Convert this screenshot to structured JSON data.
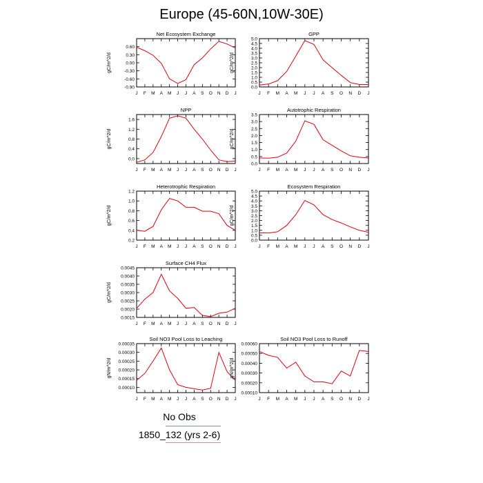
{
  "page": {
    "title": "Europe (45-60N,10W-30E)"
  },
  "legend": [
    {
      "label": "No Obs",
      "color": "#7a8bd6"
    },
    {
      "label": "1850_132 (yrs 2-6)",
      "color": "#e88a8a"
    }
  ],
  "line_color": "#e0000f",
  "chart_data": [
    {
      "type": "line",
      "title": "Net Ecosystem Exchange",
      "ylabel": "gC/m^2/d",
      "x": [
        "J",
        "F",
        "M",
        "A",
        "M",
        "J",
        "J",
        "A",
        "S",
        "O",
        "N",
        "D",
        "J"
      ],
      "ylim": [
        -0.9,
        0.9
      ],
      "yticks": [
        -0.9,
        -0.6,
        -0.3,
        0.0,
        0.3,
        0.6
      ],
      "ytick_labels": [
        "-0.90",
        "-0.60",
        "-0.30",
        "0.00",
        "0.30",
        "0.60"
      ],
      "series": [
        {
          "values": [
            0.58,
            0.45,
            0.28,
            -0.02,
            -0.6,
            -0.77,
            -0.63,
            -0.07,
            0.18,
            0.52,
            0.8,
            0.7,
            0.55
          ]
        }
      ]
    },
    {
      "type": "line",
      "title": "GPP",
      "ylabel": "gC/m^2/d",
      "x": [
        "J",
        "F",
        "M",
        "A",
        "M",
        "J",
        "J",
        "A",
        "S",
        "O",
        "N",
        "D",
        "J"
      ],
      "ylim": [
        0,
        5
      ],
      "yticks": [
        0,
        0.5,
        1,
        1.5,
        2,
        2.5,
        3,
        3.5,
        4,
        4.5,
        5
      ],
      "ytick_labels": [
        "0.0",
        "0.5",
        "1.0",
        "1.5",
        "2.0",
        "2.5",
        "3.0",
        "3.5",
        "4.0",
        "4.5",
        "5.0"
      ],
      "series": [
        {
          "values": [
            0.2,
            0.3,
            0.65,
            1.6,
            3.2,
            4.8,
            4.4,
            2.8,
            2.0,
            1.2,
            0.45,
            0.25,
            0.25
          ]
        }
      ]
    },
    {
      "type": "line",
      "title": "NPP",
      "ylabel": "gC/m^2/d",
      "x": [
        "J",
        "F",
        "M",
        "A",
        "M",
        "J",
        "J",
        "A",
        "S",
        "O",
        "N",
        "D",
        "J"
      ],
      "ylim": [
        -0.2,
        1.8
      ],
      "yticks": [
        0,
        0.4,
        0.8,
        1.2,
        1.6
      ],
      "ytick_labels": [
        "0.0",
        "0.4",
        "0.8",
        "1.2",
        "1.6"
      ],
      "series": [
        {
          "values": [
            -0.15,
            -0.05,
            0.25,
            0.9,
            1.65,
            1.75,
            1.65,
            1.2,
            0.8,
            0.35,
            -0.05,
            -0.12,
            -0.1
          ]
        }
      ]
    },
    {
      "type": "line",
      "title": "Autotrophic Respiration",
      "ylabel": "gC/m^2/d",
      "x": [
        "J",
        "F",
        "M",
        "A",
        "M",
        "J",
        "J",
        "A",
        "S",
        "O",
        "N",
        "D",
        "J"
      ],
      "ylim": [
        0,
        3.5
      ],
      "yticks": [
        0,
        0.5,
        1,
        1.5,
        2,
        2.5,
        3,
        3.5
      ],
      "ytick_labels": [
        "0.0",
        "0.5",
        "1.0",
        "1.5",
        "2.0",
        "2.5",
        "3.0",
        "3.5"
      ],
      "series": [
        {
          "values": [
            0.4,
            0.38,
            0.45,
            0.75,
            1.6,
            3.05,
            2.8,
            1.7,
            1.3,
            0.9,
            0.55,
            0.45,
            0.4
          ]
        }
      ]
    },
    {
      "type": "line",
      "title": "Heterotrophic Respiration",
      "ylabel": "gC/m^2/d",
      "x": [
        "J",
        "F",
        "M",
        "A",
        "M",
        "J",
        "J",
        "A",
        "S",
        "O",
        "N",
        "D",
        "J"
      ],
      "ylim": [
        0.2,
        1.2
      ],
      "yticks": [
        0.2,
        0.4,
        0.6,
        0.8,
        1.0,
        1.2
      ],
      "ytick_labels": [
        "0.2",
        "0.4",
        "0.6",
        "0.8",
        "1.0",
        "1.2"
      ],
      "series": [
        {
          "values": [
            0.4,
            0.38,
            0.48,
            0.82,
            1.05,
            1.0,
            0.87,
            0.87,
            0.79,
            0.79,
            0.74,
            0.5,
            0.4
          ]
        }
      ]
    },
    {
      "type": "line",
      "title": "Ecosystem Respiration",
      "ylabel": "gC/m^2/d",
      "x": [
        "J",
        "F",
        "M",
        "A",
        "M",
        "J",
        "J",
        "A",
        "S",
        "O",
        "N",
        "D",
        "J"
      ],
      "ylim": [
        0,
        5
      ],
      "yticks": [
        0,
        0.5,
        1,
        1.5,
        2,
        2.5,
        3,
        3.5,
        4,
        4.5,
        5
      ],
      "ytick_labels": [
        "0.0",
        "0.5",
        "1.0",
        "1.5",
        "2.0",
        "2.5",
        "3.0",
        "3.5",
        "4.0",
        "4.5",
        "5.0"
      ],
      "series": [
        {
          "values": [
            0.75,
            0.72,
            0.85,
            1.5,
            2.6,
            4.05,
            3.6,
            2.6,
            2.1,
            1.75,
            1.35,
            1.0,
            0.8
          ]
        }
      ]
    },
    {
      "type": "line",
      "title": "Surface CH4 Flux",
      "ylabel": "gC/m^2/d",
      "x": [
        "J",
        "F",
        "M",
        "A",
        "M",
        "J",
        "J",
        "A",
        "S",
        "O",
        "N",
        "D",
        "J"
      ],
      "ylim": [
        0.0015,
        0.0045
      ],
      "yticks": [
        0.0015,
        0.002,
        0.0025,
        0.003,
        0.0035,
        0.004,
        0.0045
      ],
      "ytick_labels": [
        "0.0015",
        "0.0020",
        "0.0025",
        "0.0030",
        "0.0035",
        "0.0040",
        "0.0045"
      ],
      "series": [
        {
          "values": [
            0.00205,
            0.0026,
            0.003,
            0.0041,
            0.0031,
            0.00265,
            0.00205,
            0.0021,
            0.00162,
            0.00155,
            0.00175,
            0.00182,
            0.00205
          ]
        }
      ]
    },
    {
      "type": "line",
      "title": "Soil NO3 Pool Loss to Leaching",
      "ylabel": "gN/m^2/d",
      "x": [
        "J",
        "F",
        "M",
        "A",
        "M",
        "J",
        "J",
        "A",
        "S",
        "O",
        "N",
        "D",
        "J"
      ],
      "ylim": [
        7e-05,
        0.00035
      ],
      "yticks": [
        0.0001,
        0.00015,
        0.0002,
        0.00025,
        0.0003,
        0.00035
      ],
      "ytick_labels": [
        "0.00010",
        "0.00015",
        "0.00020",
        "0.00025",
        "0.00030",
        "0.00035"
      ],
      "series": [
        {
          "values": [
            0.00014,
            0.00018,
            0.00025,
            0.000325,
            0.0002,
            0.000115,
            0.0001,
            9.2e-05,
            8.5e-05,
            9.5e-05,
            0.0003,
            0.00019,
            0.00014
          ]
        }
      ]
    },
    {
      "type": "line",
      "title": "Soil NO3 Pool Loss to Runoff",
      "ylabel": "gN/m^2/d",
      "x": [
        "J",
        "F",
        "M",
        "A",
        "M",
        "J",
        "J",
        "A",
        "S",
        "O",
        "N",
        "D",
        "J"
      ],
      "ylim": [
        0.0001,
        0.0006
      ],
      "yticks": [
        0.0001,
        0.0002,
        0.0003,
        0.0004,
        0.0005,
        0.0006
      ],
      "ytick_labels": [
        "0.00010",
        "0.00020",
        "0.00030",
        "0.00040",
        "0.00050",
        "0.00060"
      ],
      "series": [
        {
          "values": [
            0.00052,
            0.00048,
            0.00046,
            0.00035,
            0.00041,
            0.00027,
            0.00021,
            0.00021,
            0.00019,
            0.00032,
            0.00027,
            0.00053,
            0.00052
          ]
        }
      ]
    }
  ]
}
